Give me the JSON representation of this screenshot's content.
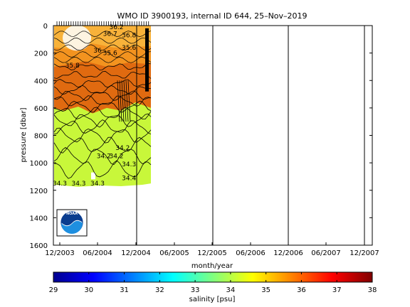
{
  "title": "WMO ID 3900193, internal ID 644, 25–Nov–2019",
  "colors": {
    "deep": "#e06a10",
    "mid": "#f3931f",
    "upper": "#f8b23a",
    "lime": "#c8f73a",
    "white": "#ffffff"
  },
  "chart_data": [
    {
      "type": "heatmap",
      "title": "WMO ID 3900193, internal ID 644, 25–Nov–2019",
      "xlabel": "month/year",
      "ylabel": "pressure [dbar]",
      "x_ticks": [
        "12/2003",
        "06/2004",
        "12/2004",
        "06/2005",
        "12/2005",
        "06/2006",
        "12/2006",
        "06/2007",
        "12/2007"
      ],
      "y_ticks": [
        0,
        200,
        400,
        600,
        800,
        1000,
        1200,
        1400,
        1600
      ],
      "ylim": [
        0,
        1600
      ],
      "y_reversed": true,
      "grid": false,
      "contour_labels": [
        {
          "text": "36.2",
          "date": "2004-09",
          "pressure": 10
        },
        {
          "text": "36.7",
          "date": "2004-08",
          "pressure": 60
        },
        {
          "text": "36.8",
          "date": "2004-11",
          "pressure": 70
        },
        {
          "text": "36",
          "date": "2004-06",
          "pressure": 180
        },
        {
          "text": "35.6",
          "date": "2004-08",
          "pressure": 200
        },
        {
          "text": "35.6",
          "date": "2004-11",
          "pressure": 160
        },
        {
          "text": "35.8",
          "date": "2004-02",
          "pressure": 290
        },
        {
          "text": "34.2",
          "date": "2004-07",
          "pressure": 950
        },
        {
          "text": "34.2",
          "date": "2004-10",
          "pressure": 890
        },
        {
          "text": "34.2",
          "date": "2004-09",
          "pressure": 950
        },
        {
          "text": "34.3",
          "date": "2004-11",
          "pressure": 1010
        },
        {
          "text": "34.4",
          "date": "2004-11",
          "pressure": 1110
        },
        {
          "text": "34.3",
          "date": "2003-12",
          "pressure": 1150
        },
        {
          "text": "34.3",
          "date": "2004-03",
          "pressure": 1150
        },
        {
          "text": "34.3",
          "date": "2004-06",
          "pressure": 1150
        }
      ],
      "profile_dates_note_removed": true
    },
    {
      "type": "heatmap",
      "title": "",
      "xlabel": "salinity [psu]",
      "colorbar": true,
      "x_ticks": [
        29,
        30,
        31,
        32,
        33,
        34,
        35,
        36,
        37,
        38
      ],
      "xlim": [
        29,
        38
      ],
      "colormap": "jet"
    }
  ],
  "logo": {
    "text": "NOAA"
  }
}
